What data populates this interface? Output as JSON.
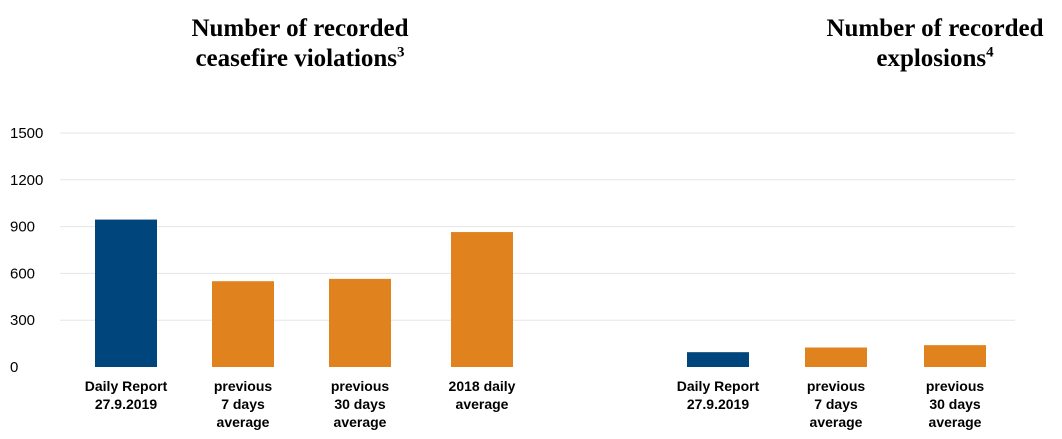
{
  "titles": {
    "left": {
      "text": "Number of recorded ceasefire violations",
      "note": "3"
    },
    "right": {
      "text": "Number of recorded explosions",
      "note": "4"
    }
  },
  "colors": {
    "daily": "#00457c",
    "average": "#e0831e",
    "grid": "#e6e6e6"
  },
  "chart_data": {
    "type": "bar",
    "ylim": [
      0,
      1500
    ],
    "yticks": [
      0,
      300,
      600,
      900,
      1200,
      1500
    ],
    "grid": true,
    "groups": [
      {
        "title": "Number of recorded ceasefire violations",
        "categories": [
          "Daily Report 27.9.2019",
          "previous 7 days average",
          "previous 30 days average",
          "2018 daily average"
        ],
        "category_lines": [
          [
            "Daily Report",
            "27.9.2019"
          ],
          [
            "previous",
            "7 days",
            "average"
          ],
          [
            "previous",
            "30 days",
            "average"
          ],
          [
            "2018 daily",
            "average"
          ]
        ],
        "values": [
          945,
          550,
          565,
          865
        ]
      },
      {
        "title": "Number of recorded explosions",
        "categories": [
          "Daily Report 27.9.2019",
          "previous 7 days average",
          "previous 30 days average"
        ],
        "category_lines": [
          [
            "Daily Report",
            "27.9.2019"
          ],
          [
            "previous",
            "7 days",
            "average"
          ],
          [
            "previous",
            "30 days",
            "average"
          ]
        ],
        "values": [
          95,
          125,
          140
        ]
      }
    ]
  }
}
